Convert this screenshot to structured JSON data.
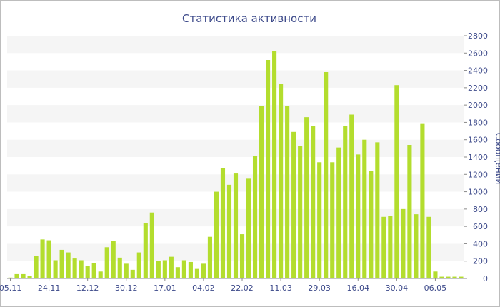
{
  "chart_data": {
    "type": "bar",
    "title": "Статистика активности",
    "ylabel": "Сообщений",
    "xlabel": "",
    "ylim": [
      0,
      2800
    ],
    "y_ticks": [
      0,
      200,
      400,
      600,
      800,
      1000,
      1200,
      1400,
      1600,
      1800,
      2000,
      2200,
      2400,
      2600,
      2800
    ],
    "x_tick_labels": [
      {
        "index": 0,
        "label": "05.11"
      },
      {
        "index": 6,
        "label": "24.11"
      },
      {
        "index": 12,
        "label": "12.12"
      },
      {
        "index": 18,
        "label": "30.12"
      },
      {
        "index": 24,
        "label": "17.01"
      },
      {
        "index": 30,
        "label": "04.02"
      },
      {
        "index": 36,
        "label": "22.02"
      },
      {
        "index": 42,
        "label": "11.03"
      },
      {
        "index": 48,
        "label": "29.03"
      },
      {
        "index": 54,
        "label": "16.04"
      },
      {
        "index": 60,
        "label": "30.04"
      },
      {
        "index": 66,
        "label": "06.05"
      }
    ],
    "values": [
      10,
      50,
      50,
      30,
      260,
      450,
      440,
      210,
      330,
      300,
      230,
      210,
      140,
      180,
      80,
      360,
      430,
      240,
      170,
      100,
      300,
      640,
      760,
      200,
      210,
      250,
      130,
      210,
      190,
      110,
      170,
      480,
      1000,
      1270,
      1080,
      1210,
      510,
      1150,
      1410,
      1990,
      2520,
      2620,
      2240,
      1990,
      1690,
      1530,
      1860,
      1760,
      1340,
      2380,
      1340,
      1510,
      1760,
      1890,
      1430,
      1600,
      1240,
      1570,
      710,
      720,
      2230,
      800,
      1540,
      740,
      1790,
      710,
      80,
      20,
      20,
      20,
      20
    ],
    "colors": {
      "bar": "#b3dd2e",
      "title": "#3d4a8a",
      "axis_text": "#3d4a8a",
      "stripe": "#f5f5f5"
    },
    "grid": "horizontal alternating bands",
    "legend": "none"
  }
}
